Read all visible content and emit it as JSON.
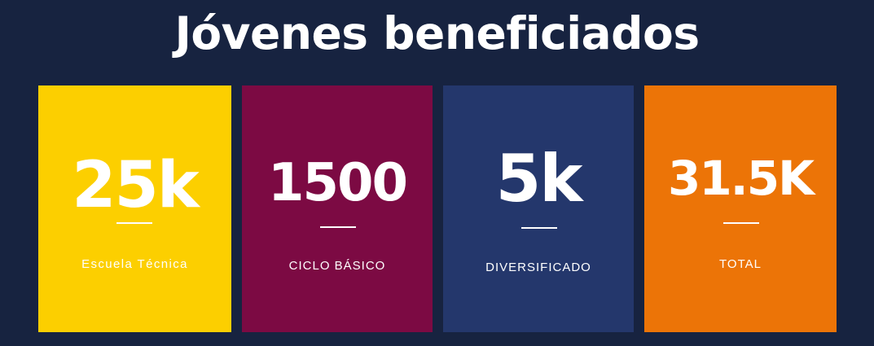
{
  "title": "Jóvenes beneficiados",
  "colors": {
    "background": "#172340",
    "card_yellow": "#fccf00",
    "card_wine": "#7c0a43",
    "card_navy": "#24376c",
    "card_orange": "#ec7407",
    "text": "#ffffff"
  },
  "stats": [
    {
      "value": "25k",
      "label": "Escuela Técnica"
    },
    {
      "value": "1500",
      "label": "CICLO BÁSICO"
    },
    {
      "value": "5k",
      "label": "DIVERSIFICADO"
    },
    {
      "value": "31.5K",
      "label": "TOTAL"
    }
  ]
}
